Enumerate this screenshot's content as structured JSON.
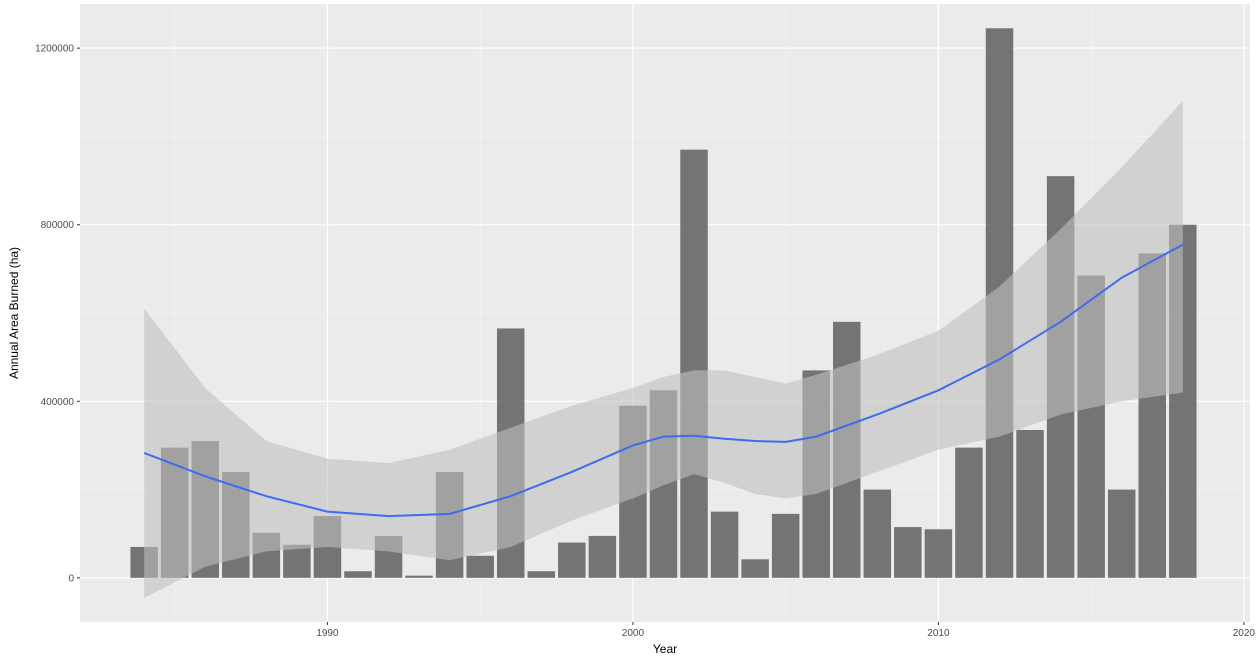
{
  "chart_data": {
    "type": "bar",
    "title": "",
    "xlabel": "Year",
    "ylabel": "Annual Area Burned (ha)",
    "xlim": [
      1981.9,
      2020.2
    ],
    "ylim": [
      -100000,
      1300000
    ],
    "x_ticks": [
      1990,
      2000,
      2010,
      2020
    ],
    "x_tick_labels": [
      "1990",
      "2000",
      "2010",
      "2020"
    ],
    "y_ticks": [
      0,
      400000,
      800000,
      1200000
    ],
    "y_tick_labels": [
      "0",
      "400000",
      "800000",
      "1200000"
    ],
    "grid": true,
    "bar_color": "#595959",
    "bar_opacity": 0.82,
    "smooth_color": "#3f6bf0",
    "ribbon_color": "#bfbfbf",
    "series": [
      {
        "type": "bar",
        "x": [
          1984,
          1985,
          1986,
          1987,
          1988,
          1989,
          1990,
          1991,
          1992,
          1993,
          1994,
          1995,
          1996,
          1997,
          1998,
          1999,
          2000,
          2001,
          2002,
          2003,
          2004,
          2005,
          2006,
          2007,
          2008,
          2009,
          2010,
          2011,
          2012,
          2013,
          2014,
          2015,
          2016,
          2017,
          2018
        ],
        "values": [
          70000,
          295000,
          310000,
          240000,
          102000,
          75000,
          140000,
          15000,
          95000,
          5000,
          240000,
          50000,
          565000,
          15000,
          80000,
          95000,
          390000,
          425000,
          970000,
          150000,
          42000,
          145000,
          470000,
          580000,
          200000,
          115000,
          110000,
          295000,
          1245000,
          335000,
          910000,
          685000,
          200000,
          735000,
          800000
        ]
      },
      {
        "type": "smooth",
        "x": [
          1984,
          1986,
          1988,
          1990,
          1992,
          1994,
          1996,
          1998,
          2000,
          2001,
          2002,
          2003,
          2004,
          2005,
          2006,
          2008,
          2010,
          2012,
          2014,
          2016,
          2018
        ],
        "values": [
          283000,
          230000,
          185000,
          150000,
          140000,
          145000,
          185000,
          240000,
          300000,
          320000,
          322000,
          315000,
          310000,
          308000,
          320000,
          370000,
          425000,
          495000,
          580000,
          680000,
          755000
        ],
        "lower": [
          -45000,
          25000,
          60000,
          70000,
          60000,
          40000,
          70000,
          130000,
          180000,
          210000,
          235000,
          215000,
          190000,
          180000,
          190000,
          240000,
          290000,
          320000,
          370000,
          400000,
          420000
        ],
        "upper": [
          610000,
          430000,
          310000,
          270000,
          260000,
          290000,
          340000,
          390000,
          430000,
          455000,
          470000,
          470000,
          455000,
          440000,
          460000,
          505000,
          560000,
          660000,
          790000,
          930000,
          1080000
        ]
      }
    ]
  }
}
